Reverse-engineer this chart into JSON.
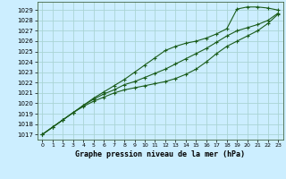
{
  "title": "Graphe pression niveau de la mer (hPa)",
  "background_color": "#cceeff",
  "grid_color": "#aad4d4",
  "line_color": "#1a5c1a",
  "ylim": [
    1016.5,
    1029.8
  ],
  "yticks": [
    1017,
    1018,
    1019,
    1020,
    1021,
    1022,
    1023,
    1024,
    1025,
    1026,
    1027,
    1028,
    1029
  ],
  "series": [
    [
      1017.0,
      1017.7,
      1018.4,
      1019.1,
      1019.8,
      1020.5,
      1021.1,
      1021.7,
      1022.3,
      1023.0,
      1023.7,
      1024.4,
      1025.1,
      1025.5,
      1025.8,
      1026.0,
      1026.3,
      1026.7,
      1027.2,
      1029.1,
      1029.3,
      1029.3,
      1029.2,
      1029.0
    ],
    [
      1017.0,
      1017.7,
      1018.4,
      1019.1,
      1019.8,
      1020.4,
      1020.9,
      1021.3,
      1021.8,
      1022.1,
      1022.5,
      1022.9,
      1023.3,
      1023.8,
      1024.3,
      1024.8,
      1025.3,
      1025.9,
      1026.5,
      1027.0,
      1027.3,
      1027.6,
      1028.0,
      1028.7
    ],
    [
      1017.0,
      1017.7,
      1018.4,
      1019.1,
      1019.7,
      1020.2,
      1020.6,
      1021.0,
      1021.3,
      1021.5,
      1021.7,
      1021.9,
      1022.1,
      1022.4,
      1022.8,
      1023.3,
      1024.0,
      1024.8,
      1025.5,
      1026.0,
      1026.5,
      1027.0,
      1027.7,
      1028.6
    ]
  ]
}
